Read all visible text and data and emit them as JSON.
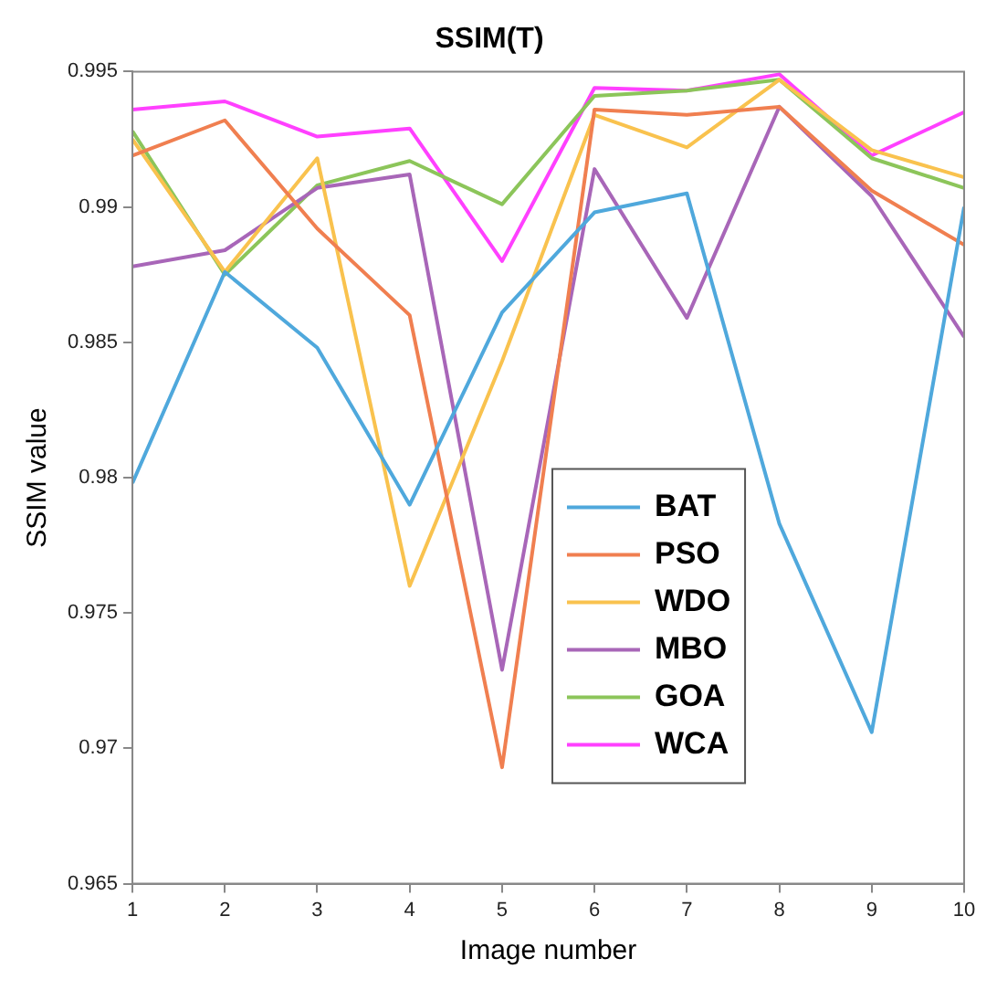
{
  "chart_data": {
    "type": "line",
    "title": "SSIM(T)",
    "xlabel": "Image number",
    "ylabel": "SSIM value",
    "x": [
      1,
      2,
      3,
      4,
      5,
      6,
      7,
      8,
      9,
      10
    ],
    "xlim": [
      1,
      10
    ],
    "xticks": [
      1,
      2,
      3,
      4,
      5,
      6,
      7,
      8,
      9,
      10
    ],
    "ylim": [
      0.965,
      0.995
    ],
    "yticks": [
      0.965,
      0.97,
      0.975,
      0.98,
      0.985,
      0.99,
      0.995
    ],
    "grid": false,
    "legend": "bottom",
    "marker": "none",
    "line_style": "solid",
    "series": [
      {
        "name": "BAT",
        "color": "#4fa8dc",
        "values": [
          0.9798,
          0.9876,
          0.9848,
          0.979,
          0.9861,
          0.9898,
          0.9905,
          0.9783,
          0.9706,
          0.99
        ]
      },
      {
        "name": "PSO",
        "color": "#f07f50",
        "values": [
          0.9919,
          0.9932,
          0.9892,
          0.986,
          0.9693,
          0.9936,
          0.9934,
          0.9937,
          0.9906,
          0.9886
        ]
      },
      {
        "name": "WDO",
        "color": "#f9c24e",
        "values": [
          0.9925,
          0.9876,
          0.9918,
          0.976,
          0.9843,
          0.9934,
          0.9922,
          0.9947,
          0.9921,
          0.9911
        ]
      },
      {
        "name": "MBO",
        "color": "#a866b8",
        "values": [
          0.9878,
          0.9884,
          0.9907,
          0.9912,
          0.9729,
          0.9914,
          0.9859,
          0.9937,
          0.9904,
          0.9852
        ]
      },
      {
        "name": "GOA",
        "color": "#8cc55a",
        "values": [
          0.9928,
          0.9875,
          0.9908,
          0.9917,
          0.9901,
          0.9941,
          0.9943,
          0.9947,
          0.9918,
          0.9907
        ]
      },
      {
        "name": "WCA",
        "color": "#ff40ff",
        "values": [
          0.9936,
          0.9939,
          0.9926,
          0.9929,
          0.988,
          0.9944,
          0.9943,
          0.9949,
          0.9919,
          0.9935
        ]
      }
    ]
  }
}
